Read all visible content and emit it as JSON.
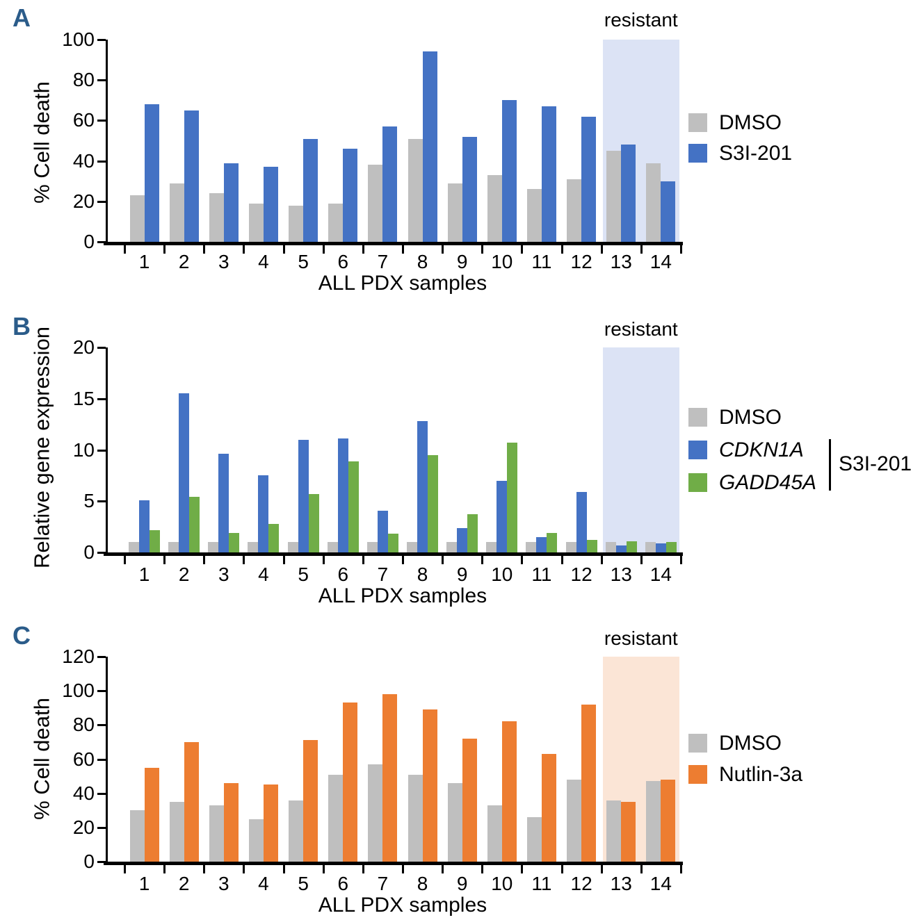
{
  "colors": {
    "panel_letter": "#2B5C8A",
    "axis": "#000000",
    "dmso_gray": "#BFBFBF",
    "s3i_blue": "#4472C4",
    "gadd45a_green": "#70AD47",
    "nutlin_orange": "#ED7D31",
    "shade_blue": "#DCE3F5",
    "shade_orange": "#FBE5D6"
  },
  "panels": [
    {
      "letter": "A"
    },
    {
      "letter": "B"
    },
    {
      "letter": "C"
    }
  ],
  "chart_data": [
    {
      "type": "bar",
      "title": "",
      "ylabel": "% Cell death",
      "xlabel": "ALL PDX samples",
      "ylim": [
        0,
        100
      ],
      "yticks": [
        0,
        20,
        40,
        60,
        80,
        100
      ],
      "grid": false,
      "legend_position": "right",
      "categories": [
        "1",
        "2",
        "3",
        "4",
        "5",
        "6",
        "7",
        "8",
        "9",
        "10",
        "11",
        "12",
        "13",
        "14"
      ],
      "series": [
        {
          "name": "DMSO",
          "color": "#BFBFBF",
          "italic": false,
          "values": [
            23,
            29,
            24,
            19,
            18,
            19,
            38,
            51,
            29,
            33,
            26,
            31,
            45,
            39
          ]
        },
        {
          "name": "S3I-201",
          "color": "#4472C4",
          "italic": false,
          "values": [
            68,
            65,
            39,
            37,
            51,
            46,
            57,
            94,
            52,
            70,
            67,
            62,
            48,
            30
          ]
        }
      ],
      "annotation": {
        "label": "resistant",
        "from_category": "13",
        "to_category": "14",
        "shade_color": "#DCE3F5"
      }
    },
    {
      "type": "bar",
      "title": "",
      "ylabel": "Relative gene expression",
      "xlabel": "ALL PDX samples",
      "ylim": [
        0,
        20
      ],
      "yticks": [
        0,
        5,
        10,
        15,
        20
      ],
      "grid": false,
      "legend_position": "right",
      "categories": [
        "1",
        "2",
        "3",
        "4",
        "5",
        "6",
        "7",
        "8",
        "9",
        "10",
        "11",
        "12",
        "13",
        "14"
      ],
      "series": [
        {
          "name": "DMSO",
          "color": "#BFBFBF",
          "italic": false,
          "values": [
            1,
            1,
            1,
            1,
            1,
            1,
            1,
            1,
            1,
            1,
            1,
            1,
            1,
            1
          ]
        },
        {
          "name": "CDKN1A",
          "color": "#4472C4",
          "italic": true,
          "values": [
            5.1,
            15.5,
            9.6,
            7.5,
            11.0,
            11.1,
            4.1,
            12.8,
            2.4,
            7.0,
            1.5,
            5.9,
            0.7,
            0.9
          ]
        },
        {
          "name": "GADD45A",
          "color": "#70AD47",
          "italic": true,
          "values": [
            2.2,
            5.4,
            1.9,
            2.8,
            5.7,
            8.9,
            1.8,
            9.5,
            3.7,
            10.7,
            1.9,
            1.2,
            1.1,
            1.0
          ]
        }
      ],
      "legend_group": {
        "label": "S3I-201",
        "members": [
          "CDKN1A",
          "GADD45A"
        ]
      },
      "annotation": {
        "label": "resistant",
        "from_category": "13",
        "to_category": "14",
        "shade_color": "#DCE3F5"
      }
    },
    {
      "type": "bar",
      "title": "",
      "ylabel": "% Cell death",
      "xlabel": "ALL PDX samples",
      "ylim": [
        0,
        120
      ],
      "yticks": [
        0,
        20,
        40,
        60,
        80,
        100,
        120
      ],
      "grid": false,
      "legend_position": "right",
      "categories": [
        "1",
        "2",
        "3",
        "4",
        "5",
        "6",
        "7",
        "8",
        "9",
        "10",
        "11",
        "12",
        "13",
        "14"
      ],
      "series": [
        {
          "name": "DMSO",
          "color": "#BFBFBF",
          "italic": false,
          "values": [
            30,
            35,
            33,
            25,
            36,
            51,
            57,
            51,
            46,
            33,
            26,
            48,
            36,
            47
          ]
        },
        {
          "name": "Nutlin-3a",
          "color": "#ED7D31",
          "italic": false,
          "values": [
            55,
            70,
            46,
            45,
            71,
            93,
            98,
            89,
            72,
            82,
            63,
            92,
            35,
            48
          ]
        }
      ],
      "annotation": {
        "label": "resistant",
        "from_category": "13",
        "to_category": "14",
        "shade_color": "#FBE5D6"
      }
    }
  ]
}
